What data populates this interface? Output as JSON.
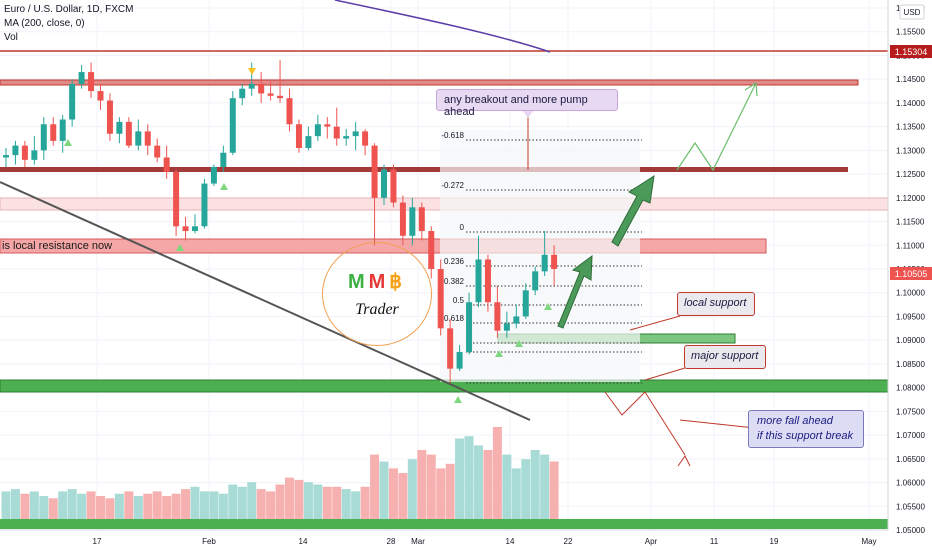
{
  "header": {
    "symbol": "Euro / U.S. Dollar, 1D, FXCM",
    "ma": "MA (200, close, 0)",
    "vol": "Vol"
  },
  "axis": {
    "currency": "USD",
    "price_ticks": [
      "1.16000",
      "1.15500",
      "1.15000",
      "1.14500",
      "1.14000",
      "1.13500",
      "1.13000",
      "1.12500",
      "1.12000",
      "1.11500",
      "1.11000",
      "1.10500",
      "1.10000",
      "1.09500",
      "1.09000",
      "1.08500",
      "1.08000",
      "1.07500",
      "1.07000",
      "1.06500",
      "1.06000",
      "1.05500",
      "1.05000"
    ],
    "date_ticks": [
      "17",
      "Feb",
      "14",
      "28",
      "Mar",
      "14",
      "22",
      "Apr",
      "11",
      "19",
      "May"
    ],
    "price_label_top": "1.15304",
    "price_label_current": "1.10505"
  },
  "annotations": {
    "breakout_note": "any breakout and more pump ahead",
    "local_resistance": "is local resistance now",
    "local_support": "local support",
    "major_support": "major support",
    "fall_note_line1": "more fall ahead",
    "fall_note_line2": "if this support break"
  },
  "fib_labels": [
    "-0.618",
    "-0.272",
    "0",
    "0.236",
    "0.382",
    "0.5",
    "0.618"
  ],
  "logo": {
    "letters": [
      "M",
      "M",
      "฿"
    ],
    "word": "Trader"
  },
  "colors": {
    "bull": "#26a69a",
    "bear": "#ef5350",
    "resistance": "#c0392b",
    "support": "#2e8b3a",
    "ma": "#5b3fa8",
    "arrow": "#4c9a5a"
  },
  "chart_data": {
    "type": "candlestick",
    "ylim": [
      1.048,
      1.162
    ],
    "ma_series": [
      {
        "date": "28",
        "value": 1.1634
      },
      {
        "date": "Mar",
        "value": 1.1565
      },
      {
        "date": "14",
        "value": 1.1545
      }
    ],
    "candles": [
      {
        "o": 1.1285,
        "h": 1.1305,
        "l": 1.1265,
        "c": 1.129
      },
      {
        "o": 1.129,
        "h": 1.132,
        "l": 1.127,
        "c": 1.131
      },
      {
        "o": 1.131,
        "h": 1.132,
        "l": 1.1265,
        "c": 1.128
      },
      {
        "o": 1.128,
        "h": 1.133,
        "l": 1.127,
        "c": 1.13
      },
      {
        "o": 1.13,
        "h": 1.137,
        "l": 1.128,
        "c": 1.1355
      },
      {
        "o": 1.1355,
        "h": 1.137,
        "l": 1.131,
        "c": 1.132
      },
      {
        "o": 1.132,
        "h": 1.1375,
        "l": 1.1295,
        "c": 1.1365
      },
      {
        "o": 1.1365,
        "h": 1.145,
        "l": 1.135,
        "c": 1.144
      },
      {
        "o": 1.144,
        "h": 1.148,
        "l": 1.143,
        "c": 1.1465
      },
      {
        "o": 1.1465,
        "h": 1.1485,
        "l": 1.141,
        "c": 1.1425
      },
      {
        "o": 1.1425,
        "h": 1.144,
        "l": 1.1385,
        "c": 1.1405
      },
      {
        "o": 1.1405,
        "h": 1.142,
        "l": 1.132,
        "c": 1.1335
      },
      {
        "o": 1.1335,
        "h": 1.137,
        "l": 1.1315,
        "c": 1.136
      },
      {
        "o": 1.136,
        "h": 1.137,
        "l": 1.1305,
        "c": 1.131
      },
      {
        "o": 1.131,
        "h": 1.1365,
        "l": 1.13,
        "c": 1.134
      },
      {
        "o": 1.134,
        "h": 1.1355,
        "l": 1.129,
        "c": 1.131
      },
      {
        "o": 1.131,
        "h": 1.1325,
        "l": 1.1275,
        "c": 1.1285
      },
      {
        "o": 1.1285,
        "h": 1.131,
        "l": 1.124,
        "c": 1.1255
      },
      {
        "o": 1.1255,
        "h": 1.126,
        "l": 1.112,
        "c": 1.114
      },
      {
        "o": 1.114,
        "h": 1.116,
        "l": 1.111,
        "c": 1.113
      },
      {
        "o": 1.113,
        "h": 1.1165,
        "l": 1.1125,
        "c": 1.114
      },
      {
        "o": 1.114,
        "h": 1.124,
        "l": 1.1135,
        "c": 1.123
      },
      {
        "o": 1.123,
        "h": 1.127,
        "l": 1.1225,
        "c": 1.1265
      },
      {
        "o": 1.1265,
        "h": 1.131,
        "l": 1.1255,
        "c": 1.1295
      },
      {
        "o": 1.1295,
        "h": 1.1425,
        "l": 1.129,
        "c": 1.141
      },
      {
        "o": 1.141,
        "h": 1.144,
        "l": 1.1395,
        "c": 1.143
      },
      {
        "o": 1.143,
        "h": 1.1485,
        "l": 1.1415,
        "c": 1.144
      },
      {
        "o": 1.144,
        "h": 1.1465,
        "l": 1.14,
        "c": 1.142
      },
      {
        "o": 1.142,
        "h": 1.1445,
        "l": 1.1405,
        "c": 1.1415
      },
      {
        "o": 1.1415,
        "h": 1.149,
        "l": 1.14,
        "c": 1.141
      },
      {
        "o": 1.141,
        "h": 1.143,
        "l": 1.134,
        "c": 1.1355
      },
      {
        "o": 1.1355,
        "h": 1.1365,
        "l": 1.1295,
        "c": 1.1305
      },
      {
        "o": 1.1305,
        "h": 1.135,
        "l": 1.13,
        "c": 1.133
      },
      {
        "o": 1.133,
        "h": 1.1375,
        "l": 1.132,
        "c": 1.1355
      },
      {
        "o": 1.1355,
        "h": 1.137,
        "l": 1.1325,
        "c": 1.135
      },
      {
        "o": 1.135,
        "h": 1.139,
        "l": 1.131,
        "c": 1.1325
      },
      {
        "o": 1.1325,
        "h": 1.1345,
        "l": 1.131,
        "c": 1.133
      },
      {
        "o": 1.133,
        "h": 1.136,
        "l": 1.13,
        "c": 1.134
      },
      {
        "o": 1.134,
        "h": 1.1345,
        "l": 1.129,
        "c": 1.131
      },
      {
        "o": 1.131,
        "h": 1.1315,
        "l": 1.11,
        "c": 1.12
      },
      {
        "o": 1.12,
        "h": 1.127,
        "l": 1.1185,
        "c": 1.126
      },
      {
        "o": 1.126,
        "h": 1.127,
        "l": 1.118,
        "c": 1.119
      },
      {
        "o": 1.119,
        "h": 1.1205,
        "l": 1.11,
        "c": 1.112
      },
      {
        "o": 1.112,
        "h": 1.12,
        "l": 1.11,
        "c": 1.118
      },
      {
        "o": 1.118,
        "h": 1.119,
        "l": 1.111,
        "c": 1.113
      },
      {
        "o": 1.113,
        "h": 1.114,
        "l": 1.103,
        "c": 1.105
      },
      {
        "o": 1.105,
        "h": 1.107,
        "l": 1.091,
        "c": 1.0925
      },
      {
        "o": 1.0925,
        "h": 1.0945,
        "l": 1.081,
        "c": 1.084
      },
      {
        "o": 1.084,
        "h": 1.089,
        "l": 1.0835,
        "c": 1.0875
      },
      {
        "o": 1.0875,
        "h": 1.1,
        "l": 1.087,
        "c": 1.098
      },
      {
        "o": 1.098,
        "h": 1.112,
        "l": 1.097,
        "c": 1.107
      },
      {
        "o": 1.107,
        "h": 1.108,
        "l": 1.096,
        "c": 1.098
      },
      {
        "o": 1.098,
        "h": 1.1015,
        "l": 1.0905,
        "c": 1.092
      },
      {
        "o": 1.092,
        "h": 1.096,
        "l": 1.0905,
        "c": 1.0935
      },
      {
        "o": 1.0935,
        "h": 1.0975,
        "l": 1.0925,
        "c": 1.095
      },
      {
        "o": 1.095,
        "h": 1.102,
        "l": 1.0945,
        "c": 1.1005
      },
      {
        "o": 1.1005,
        "h": 1.1055,
        "l": 1.0995,
        "c": 1.1045
      },
      {
        "o": 1.1045,
        "h": 1.113,
        "l": 1.1035,
        "c": 1.108
      },
      {
        "o": 1.108,
        "h": 1.11,
        "l": 1.1015,
        "c": 1.105
      }
    ],
    "volume": [
      12,
      13,
      11,
      12,
      10,
      9,
      12,
      13,
      11,
      12,
      10,
      9,
      11,
      12,
      10,
      11,
      12,
      10,
      11,
      13,
      14,
      12,
      12,
      11,
      15,
      14,
      16,
      13,
      12,
      15,
      18,
      17,
      16,
      15,
      14,
      14,
      13,
      12,
      14,
      28,
      25,
      22,
      20,
      26,
      30,
      28,
      22,
      24,
      35,
      36,
      32,
      30,
      40,
      28,
      22,
      26,
      30,
      28,
      25
    ]
  }
}
